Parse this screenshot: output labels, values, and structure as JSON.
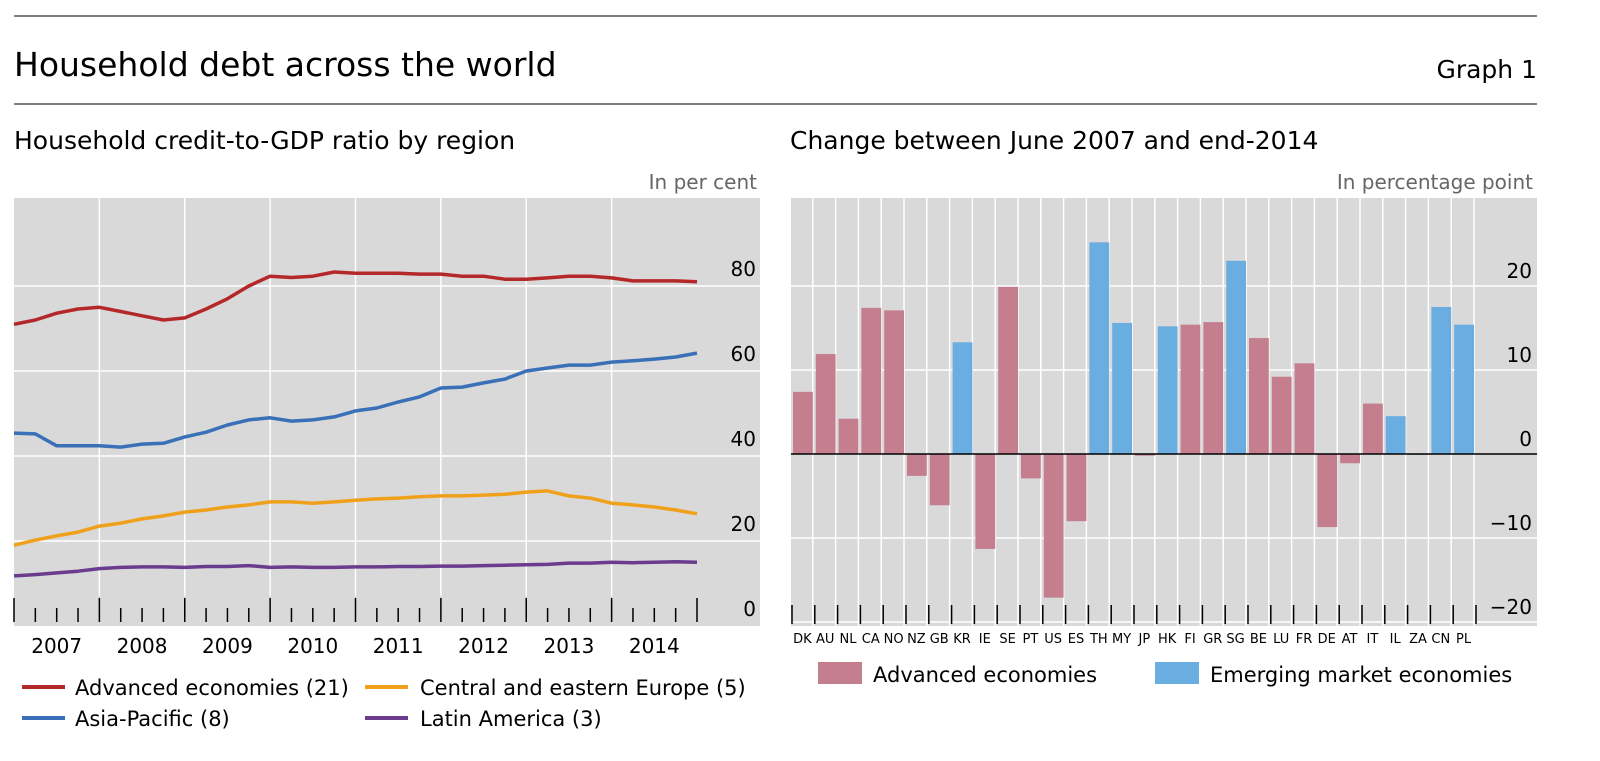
{
  "header": {
    "title": "Household debt across the world",
    "graph_label": "Graph 1"
  },
  "colors": {
    "background": "#d9d9d9",
    "advanced": "#b5282a",
    "asia": "#3a70b8",
    "cee": "#f0a11c",
    "latam": "#6b3b8e",
    "bar_advanced": "#c47e8e",
    "bar_emerging": "#6aade0"
  },
  "chart_data": [
    {
      "type": "line",
      "title": "Household credit-to-GDP ratio by region",
      "unit": "In per cent",
      "xlim": [
        2007,
        2015
      ],
      "ylim": [
        0,
        100
      ],
      "yticks": [
        0,
        20,
        40,
        60,
        80
      ],
      "xtick_labels": [
        "2007",
        "2008",
        "2009",
        "2010",
        "2011",
        "2012",
        "2013",
        "2014"
      ],
      "grid": true,
      "legend_position": "bottom",
      "x": [
        2007,
        2007.25,
        2007.5,
        2007.75,
        2008,
        2008.25,
        2008.5,
        2008.75,
        2009,
        2009.25,
        2009.5,
        2009.75,
        2010,
        2010.25,
        2010.5,
        2010.75,
        2011,
        2011.25,
        2011.5,
        2011.75,
        2012,
        2012.25,
        2012.5,
        2012.75,
        2013,
        2013.25,
        2013.5,
        2013.75,
        2014,
        2014.25,
        2014.5,
        2014.75,
        2015
      ],
      "series": [
        {
          "name": "Advanced economies (21)",
          "color": "#b5282a",
          "values": [
            71,
            72,
            73.6,
            74.6,
            75,
            74,
            73,
            72,
            72.5,
            74.6,
            77,
            80,
            82.3,
            82,
            82.3,
            83.3,
            83,
            83,
            83,
            82.8,
            82.8,
            82.3,
            82.3,
            81.6,
            81.6,
            81.9,
            82.3,
            82.3,
            81.9,
            81.2,
            81.2,
            81.2,
            81
          ]
        },
        {
          "name": "Asia-Pacific (8)",
          "color": "#3a70b8",
          "values": [
            45.4,
            45.2,
            42.4,
            42.4,
            42.4,
            42.1,
            42.8,
            43,
            44.5,
            45.6,
            47.3,
            48.5,
            49,
            48.2,
            48.5,
            49.2,
            50.6,
            51.3,
            52.7,
            53.9,
            56,
            56.2,
            57.2,
            58.1,
            60,
            60.7,
            61.4,
            61.4,
            62.1,
            62.4,
            62.8,
            63.3,
            64.2
          ]
        },
        {
          "name": "Central and eastern Europe (5)",
          "color": "#f0a11c",
          "values": [
            19,
            20.2,
            21.2,
            22.1,
            23.5,
            24.2,
            25.2,
            25.9,
            26.8,
            27.3,
            28,
            28.5,
            29.2,
            29.2,
            28.9,
            29.2,
            29.6,
            29.9,
            30.1,
            30.4,
            30.6,
            30.6,
            30.8,
            31,
            31.5,
            31.8,
            30.6,
            30.1,
            28.9,
            28.5,
            28,
            27.3,
            26.4
          ]
        },
        {
          "name": "Latin America (3)",
          "color": "#6b3b8e",
          "values": [
            11.8,
            12.1,
            12.5,
            12.9,
            13.5,
            13.8,
            13.9,
            13.9,
            13.8,
            14,
            14,
            14.2,
            13.8,
            13.9,
            13.8,
            13.8,
            13.9,
            13.9,
            14,
            14,
            14.1,
            14.1,
            14.2,
            14.3,
            14.4,
            14.5,
            14.8,
            14.8,
            15,
            14.9,
            15,
            15.1,
            15
          ]
        }
      ]
    },
    {
      "type": "bar",
      "title": "Change between June 2007 and end-2014",
      "unit": "In percentage point",
      "ylim": [
        -21,
        28
      ],
      "yticks": [
        -20,
        -10,
        0,
        10,
        20
      ],
      "grid": true,
      "legend_position": "bottom",
      "categories": [
        "DK",
        "AU",
        "NL",
        "CA",
        "NO",
        "NZ",
        "GB",
        "KR",
        "IE",
        "SE",
        "PT",
        "US",
        "ES",
        "TH",
        "MY",
        "JP",
        "HK",
        "FI",
        "GR",
        "SG",
        "BE",
        "LU",
        "FR",
        "DE",
        "AT",
        "IT",
        "IL",
        "ZA",
        "CN",
        "PL"
      ],
      "values": [
        7.4,
        11.9,
        4.2,
        17.4,
        17.1,
        -2.6,
        -6.1,
        13.3,
        -11.3,
        19.9,
        -2.9,
        -17.1,
        -8.0,
        25.2,
        15.6,
        -0.2,
        15.2,
        15.4,
        15.7,
        23.0,
        13.8,
        9.2,
        10.8,
        -8.7,
        -1.1,
        6.0,
        4.5,
        0,
        17.5,
        15.4
      ],
      "groups": [
        "Advanced economies",
        "Advanced economies",
        "Advanced economies",
        "Advanced economies",
        "Advanced economies",
        "Advanced economies",
        "Advanced economies",
        "Emerging market economies",
        "Advanced economies",
        "Advanced economies",
        "Advanced economies",
        "Advanced economies",
        "Advanced economies",
        "Emerging market economies",
        "Emerging market economies",
        "Advanced economies",
        "Emerging market economies",
        "Advanced economies",
        "Advanced economies",
        "Emerging market economies",
        "Advanced economies",
        "Advanced economies",
        "Advanced economies",
        "Advanced economies",
        "Advanced economies",
        "Advanced economies",
        "Emerging market economies",
        "Emerging market economies",
        "Emerging market economies",
        "Emerging market economies"
      ],
      "legend": [
        {
          "name": "Advanced economies",
          "color": "#c47e8e"
        },
        {
          "name": "Emerging market economies",
          "color": "#6aade0"
        }
      ]
    }
  ]
}
